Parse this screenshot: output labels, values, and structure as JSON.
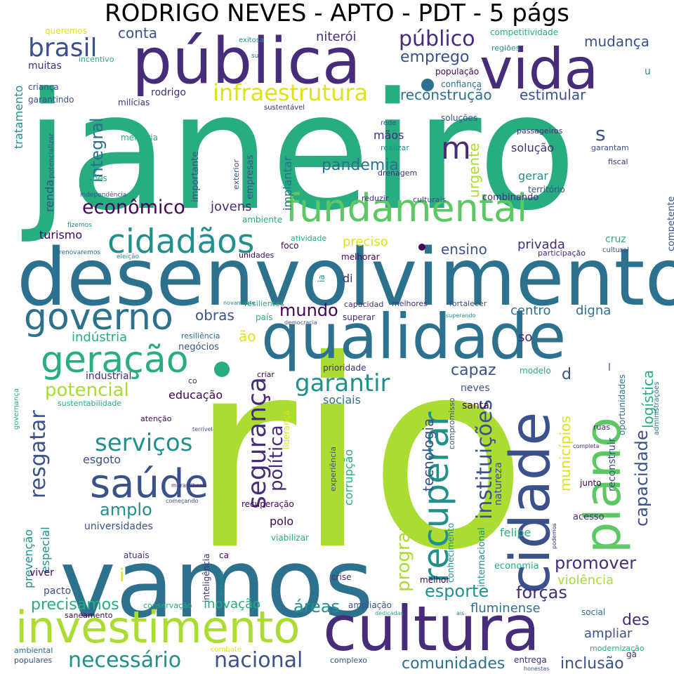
{
  "title": "RODRIGO NEVES - APTO - PDT - 5 págs",
  "palette": {
    "c1": "#44045a",
    "c2": "#472c7a",
    "c3": "#3b518b",
    "c4": "#2c718e",
    "c5": "#21908d",
    "c6": "#27ad81",
    "c7": "#5cc863",
    "c8": "#aadc32",
    "c9": "#dde318"
  },
  "words": [
    {
      "text": "rio",
      "color": "c8"
    },
    {
      "text": "janeiro",
      "color": "c6"
    },
    {
      "text": "vamos",
      "color": "c4"
    },
    {
      "text": "desenvolvimento",
      "color": "c4"
    },
    {
      "text": "pública",
      "color": "c2"
    },
    {
      "text": "qualidade",
      "color": "c4"
    },
    {
      "text": "vida",
      "color": "c2"
    },
    {
      "text": "cultura",
      "color": "c2"
    },
    {
      "text": "investimento",
      "color": "c8"
    },
    {
      "text": "cidade",
      "color": "c3"
    },
    {
      "text": "plano",
      "color": "c7"
    },
    {
      "text": "fundamental",
      "color": "c7"
    },
    {
      "text": "governo",
      "color": "c4"
    },
    {
      "text": "cidadãos",
      "color": "c5"
    },
    {
      "text": "geração",
      "color": "c6"
    },
    {
      "text": "saúde",
      "color": "c3"
    },
    {
      "text": "recuperar",
      "color": "c5"
    },
    {
      "text": "infraestrutura",
      "color": "c9"
    },
    {
      "text": "necessário",
      "color": "c5"
    },
    {
      "text": "nacional",
      "color": "c3"
    },
    {
      "text": "serviços",
      "color": "c5"
    },
    {
      "text": "segurança",
      "color": "c2"
    },
    {
      "text": "garantir",
      "color": "c5"
    },
    {
      "text": "brasil",
      "color": "c3"
    },
    {
      "text": "público",
      "color": "c2"
    },
    {
      "text": "econômico",
      "color": "c1"
    },
    {
      "text": "instituições",
      "color": "c3"
    },
    {
      "text": "resgatar",
      "color": "c3"
    },
    {
      "text": "potencial",
      "color": "c8"
    },
    {
      "text": "programa",
      "color": "c8"
    },
    {
      "text": "política",
      "color": "c2"
    },
    {
      "text": "capacidade",
      "color": "c3"
    },
    {
      "text": "integral",
      "color": "c4"
    },
    {
      "text": "promover",
      "color": "c2"
    },
    {
      "text": "amplo",
      "color": "c5"
    },
    {
      "text": "mundo",
      "color": "c1"
    },
    {
      "text": "esporte",
      "color": "c5"
    },
    {
      "text": "forças",
      "color": "c2"
    },
    {
      "text": "comunidades",
      "color": "c4"
    },
    {
      "text": "inclusão",
      "color": "c3"
    },
    {
      "text": "precisamos",
      "color": "c6"
    },
    {
      "text": "pandemia",
      "color": "c4"
    },
    {
      "text": "reconstrução",
      "color": "c4"
    },
    {
      "text": "estimular",
      "color": "c3"
    },
    {
      "text": "emprego",
      "color": "c3"
    },
    {
      "text": "capaz",
      "color": "c3"
    },
    {
      "text": "tecnologia",
      "color": "c3"
    },
    {
      "text": "municípios",
      "color": "c9"
    },
    {
      "text": "logística",
      "color": "c6"
    },
    {
      "text": "mudança",
      "color": "c3"
    },
    {
      "text": "conta",
      "color": "c3"
    },
    {
      "text": "niterói",
      "color": "c2"
    },
    {
      "text": "queremos",
      "color": "c9"
    },
    {
      "text": "exitosa",
      "color": "c5"
    },
    {
      "text": "competitividade",
      "color": "c6"
    },
    {
      "text": "regiões",
      "color": "c5"
    },
    {
      "text": "população",
      "color": "c1"
    },
    {
      "text": "confiança",
      "color": "c4"
    },
    {
      "text": "muitas",
      "color": "c2"
    },
    {
      "text": "incentivo",
      "color": "c6"
    },
    {
      "text": "criança",
      "color": "c3"
    },
    {
      "text": "garantindo",
      "color": "c3"
    },
    {
      "text": "milícias",
      "color": "c2"
    },
    {
      "text": "rodrigo",
      "color": "c2"
    },
    {
      "text": "tratamento",
      "color": "c5"
    },
    {
      "text": "sustentável",
      "color": "c2"
    },
    {
      "text": "soluções",
      "color": "c3"
    },
    {
      "text": "rede",
      "color": "c3"
    },
    {
      "text": "mãos",
      "color": "c2"
    },
    {
      "text": "urgente",
      "color": "c8"
    },
    {
      "text": "passageiros",
      "color": "c2"
    },
    {
      "text": "garantam",
      "color": "c3"
    },
    {
      "text": "fiscal",
      "color": "c2"
    },
    {
      "text": "território",
      "color": "c3"
    },
    {
      "text": "solução",
      "color": "c2"
    },
    {
      "text": "gerar",
      "color": "c5"
    },
    {
      "text": "realizar",
      "color": "c5"
    },
    {
      "text": "drenagem",
      "color": "c2"
    },
    {
      "text": "melhoria",
      "color": "c6"
    },
    {
      "text": "importante",
      "color": "c3"
    },
    {
      "text": "empresas",
      "color": "c3"
    },
    {
      "text": "exterior",
      "color": "c3"
    },
    {
      "text": "implantar",
      "color": "c4"
    },
    {
      "text": "potencializar",
      "color": "c3"
    },
    {
      "text": "renda",
      "color": "c3"
    },
    {
      "text": "ações",
      "color": "c6"
    },
    {
      "text": "independência",
      "color": "c3"
    },
    {
      "text": "jovens",
      "color": "c2"
    },
    {
      "text": "reduzir",
      "color": "c2"
    },
    {
      "text": "culturais",
      "color": "c3"
    },
    {
      "text": "combinando",
      "color": "c2"
    },
    {
      "text": "competente",
      "color": "c3"
    },
    {
      "text": "turismo",
      "color": "c1"
    },
    {
      "text": "ambiente",
      "color": "c6"
    },
    {
      "text": "atividade",
      "color": "c6"
    },
    {
      "text": "preciso",
      "color": "c9"
    },
    {
      "text": "ensino",
      "color": "c3"
    },
    {
      "text": "privada",
      "color": "c2"
    },
    {
      "text": "cruz",
      "color": "c6"
    },
    {
      "text": "cultural",
      "color": "c3"
    },
    {
      "text": "participação",
      "color": "c2"
    },
    {
      "text": "melhorar",
      "color": "c1"
    },
    {
      "text": "unidades",
      "color": "c1"
    },
    {
      "text": "foco",
      "color": "c1"
    },
    {
      "text": "eleição",
      "color": "c5"
    },
    {
      "text": "renovaremos",
      "color": "c4"
    },
    {
      "text": "fizemos",
      "color": "c5"
    },
    {
      "text": "di",
      "color": "c2"
    },
    {
      "text": "ia",
      "color": "c5"
    },
    {
      "text": "obras",
      "color": "c3"
    },
    {
      "text": "centro",
      "color": "c4"
    },
    {
      "text": "digna",
      "color": "c4"
    },
    {
      "text": "indústria",
      "color": "c6"
    },
    {
      "text": "resiliência",
      "color": "c4"
    },
    {
      "text": "ão",
      "color": "c9"
    },
    {
      "text": "negócios",
      "color": "c3"
    },
    {
      "text": "resilientes",
      "color": "c6"
    },
    {
      "text": "país",
      "color": "c6"
    },
    {
      "text": "democracia",
      "color": "c3"
    },
    {
      "text": "capacidad",
      "color": "c2"
    },
    {
      "text": "melhores",
      "color": "c2"
    },
    {
      "text": "fortalecer",
      "color": "c3"
    },
    {
      "text": "superar",
      "color": "c2"
    },
    {
      "text": "superando",
      "color": "c5"
    },
    {
      "text": "novamente",
      "color": "c5"
    },
    {
      "text": "so",
      "color": "c2"
    },
    {
      "text": "d",
      "color": "c3"
    },
    {
      "text": "industrial",
      "color": "c2"
    },
    {
      "text": "co",
      "color": "c2"
    },
    {
      "text": "criar",
      "color": "c1"
    },
    {
      "text": "prioridade",
      "color": "c2"
    },
    {
      "text": "modelo",
      "color": "c6"
    },
    {
      "text": "governança",
      "color": "c6"
    },
    {
      "text": "educação",
      "color": "c1"
    },
    {
      "text": "sustentabilidade",
      "color": "c6"
    },
    {
      "text": "neves",
      "color": "c3"
    },
    {
      "text": "santa",
      "color": "c1"
    },
    {
      "text": "sociais",
      "color": "c4"
    },
    {
      "text": "compromisso",
      "color": "c3"
    },
    {
      "text": "oportunidades",
      "color": "c4"
    },
    {
      "text": "administrações",
      "color": "c4"
    },
    {
      "text": "atenção",
      "color": "c1"
    },
    {
      "text": "terrível",
      "color": "c3"
    },
    {
      "text": "esgoto",
      "color": "c3"
    },
    {
      "text": "liderança",
      "color": "c9"
    },
    {
      "text": "corrupção",
      "color": "c6"
    },
    {
      "text": "experiência",
      "color": "c3"
    },
    {
      "text": "natureza",
      "color": "c3"
    },
    {
      "text": "reconstruir",
      "color": "c3"
    },
    {
      "text": "ruas",
      "color": "c2"
    },
    {
      "text": "completa",
      "color": "c2"
    },
    {
      "text": "maravilhosa",
      "color": "c2"
    },
    {
      "text": "junto",
      "color": "c1"
    },
    {
      "text": "começando",
      "color": "c3"
    },
    {
      "text": "recuperação",
      "color": "c1"
    },
    {
      "text": "especial",
      "color": "c5"
    },
    {
      "text": "prevenção",
      "color": "c5"
    },
    {
      "text": "universidades",
      "color": "c3"
    },
    {
      "text": "polo",
      "color": "c1"
    },
    {
      "text": "viabilizar",
      "color": "c6"
    },
    {
      "text": "conhecimento",
      "color": "c5"
    },
    {
      "text": "internacional",
      "color": "c5"
    },
    {
      "text": "acesso",
      "color": "c2"
    },
    {
      "text": "podemos",
      "color": "c2"
    },
    {
      "text": "felipe",
      "color": "c6"
    },
    {
      "text": "atuais",
      "color": "c2"
    },
    {
      "text": "ca",
      "color": "c1"
    },
    {
      "text": "viver",
      "color": "c1"
    },
    {
      "text": "inteligência",
      "color": "c2"
    },
    {
      "text": "compromis",
      "color": "c5"
    },
    {
      "text": "crise",
      "color": "c2"
    },
    {
      "text": "melhor",
      "color": "c1"
    },
    {
      "text": "economia",
      "color": "c6"
    },
    {
      "text": "violência",
      "color": "c8"
    },
    {
      "text": "pacto",
      "color": "c3"
    },
    {
      "text": "i",
      "color": "c9"
    },
    {
      "text": "áreas",
      "color": "c5"
    },
    {
      "text": "inovação",
      "color": "c6"
    },
    {
      "text": "conservação",
      "color": "c6"
    },
    {
      "text": "ampliação",
      "color": "c3"
    },
    {
      "text": "fluminense",
      "color": "c4"
    },
    {
      "text": "des",
      "color": "c2"
    },
    {
      "text": "ampliar",
      "color": "c3"
    },
    {
      "text": "social",
      "color": "c4"
    },
    {
      "text": "ais",
      "color": "c4"
    },
    {
      "text": "dedicadas",
      "color": "c6"
    },
    {
      "text": "gá",
      "color": "c2"
    },
    {
      "text": "modernização",
      "color": "c6"
    },
    {
      "text": "saneamento",
      "color": "c1"
    },
    {
      "text": "ambiental",
      "color": "c4"
    },
    {
      "text": "populares",
      "color": "c3"
    },
    {
      "text": "combate",
      "color": "c9"
    },
    {
      "text": "complexo",
      "color": "c3"
    },
    {
      "text": "entrega",
      "color": "c2"
    },
    {
      "text": "honestas",
      "color": "c3"
    },
    {
      "text": "m",
      "color": "c2"
    },
    {
      "text": "s",
      "color": "c3"
    },
    {
      "text": "u",
      "color": "c5"
    },
    {
      "text": "l",
      "color": "c3"
    },
    {
      "text": "su",
      "color": "c4"
    }
  ]
}
